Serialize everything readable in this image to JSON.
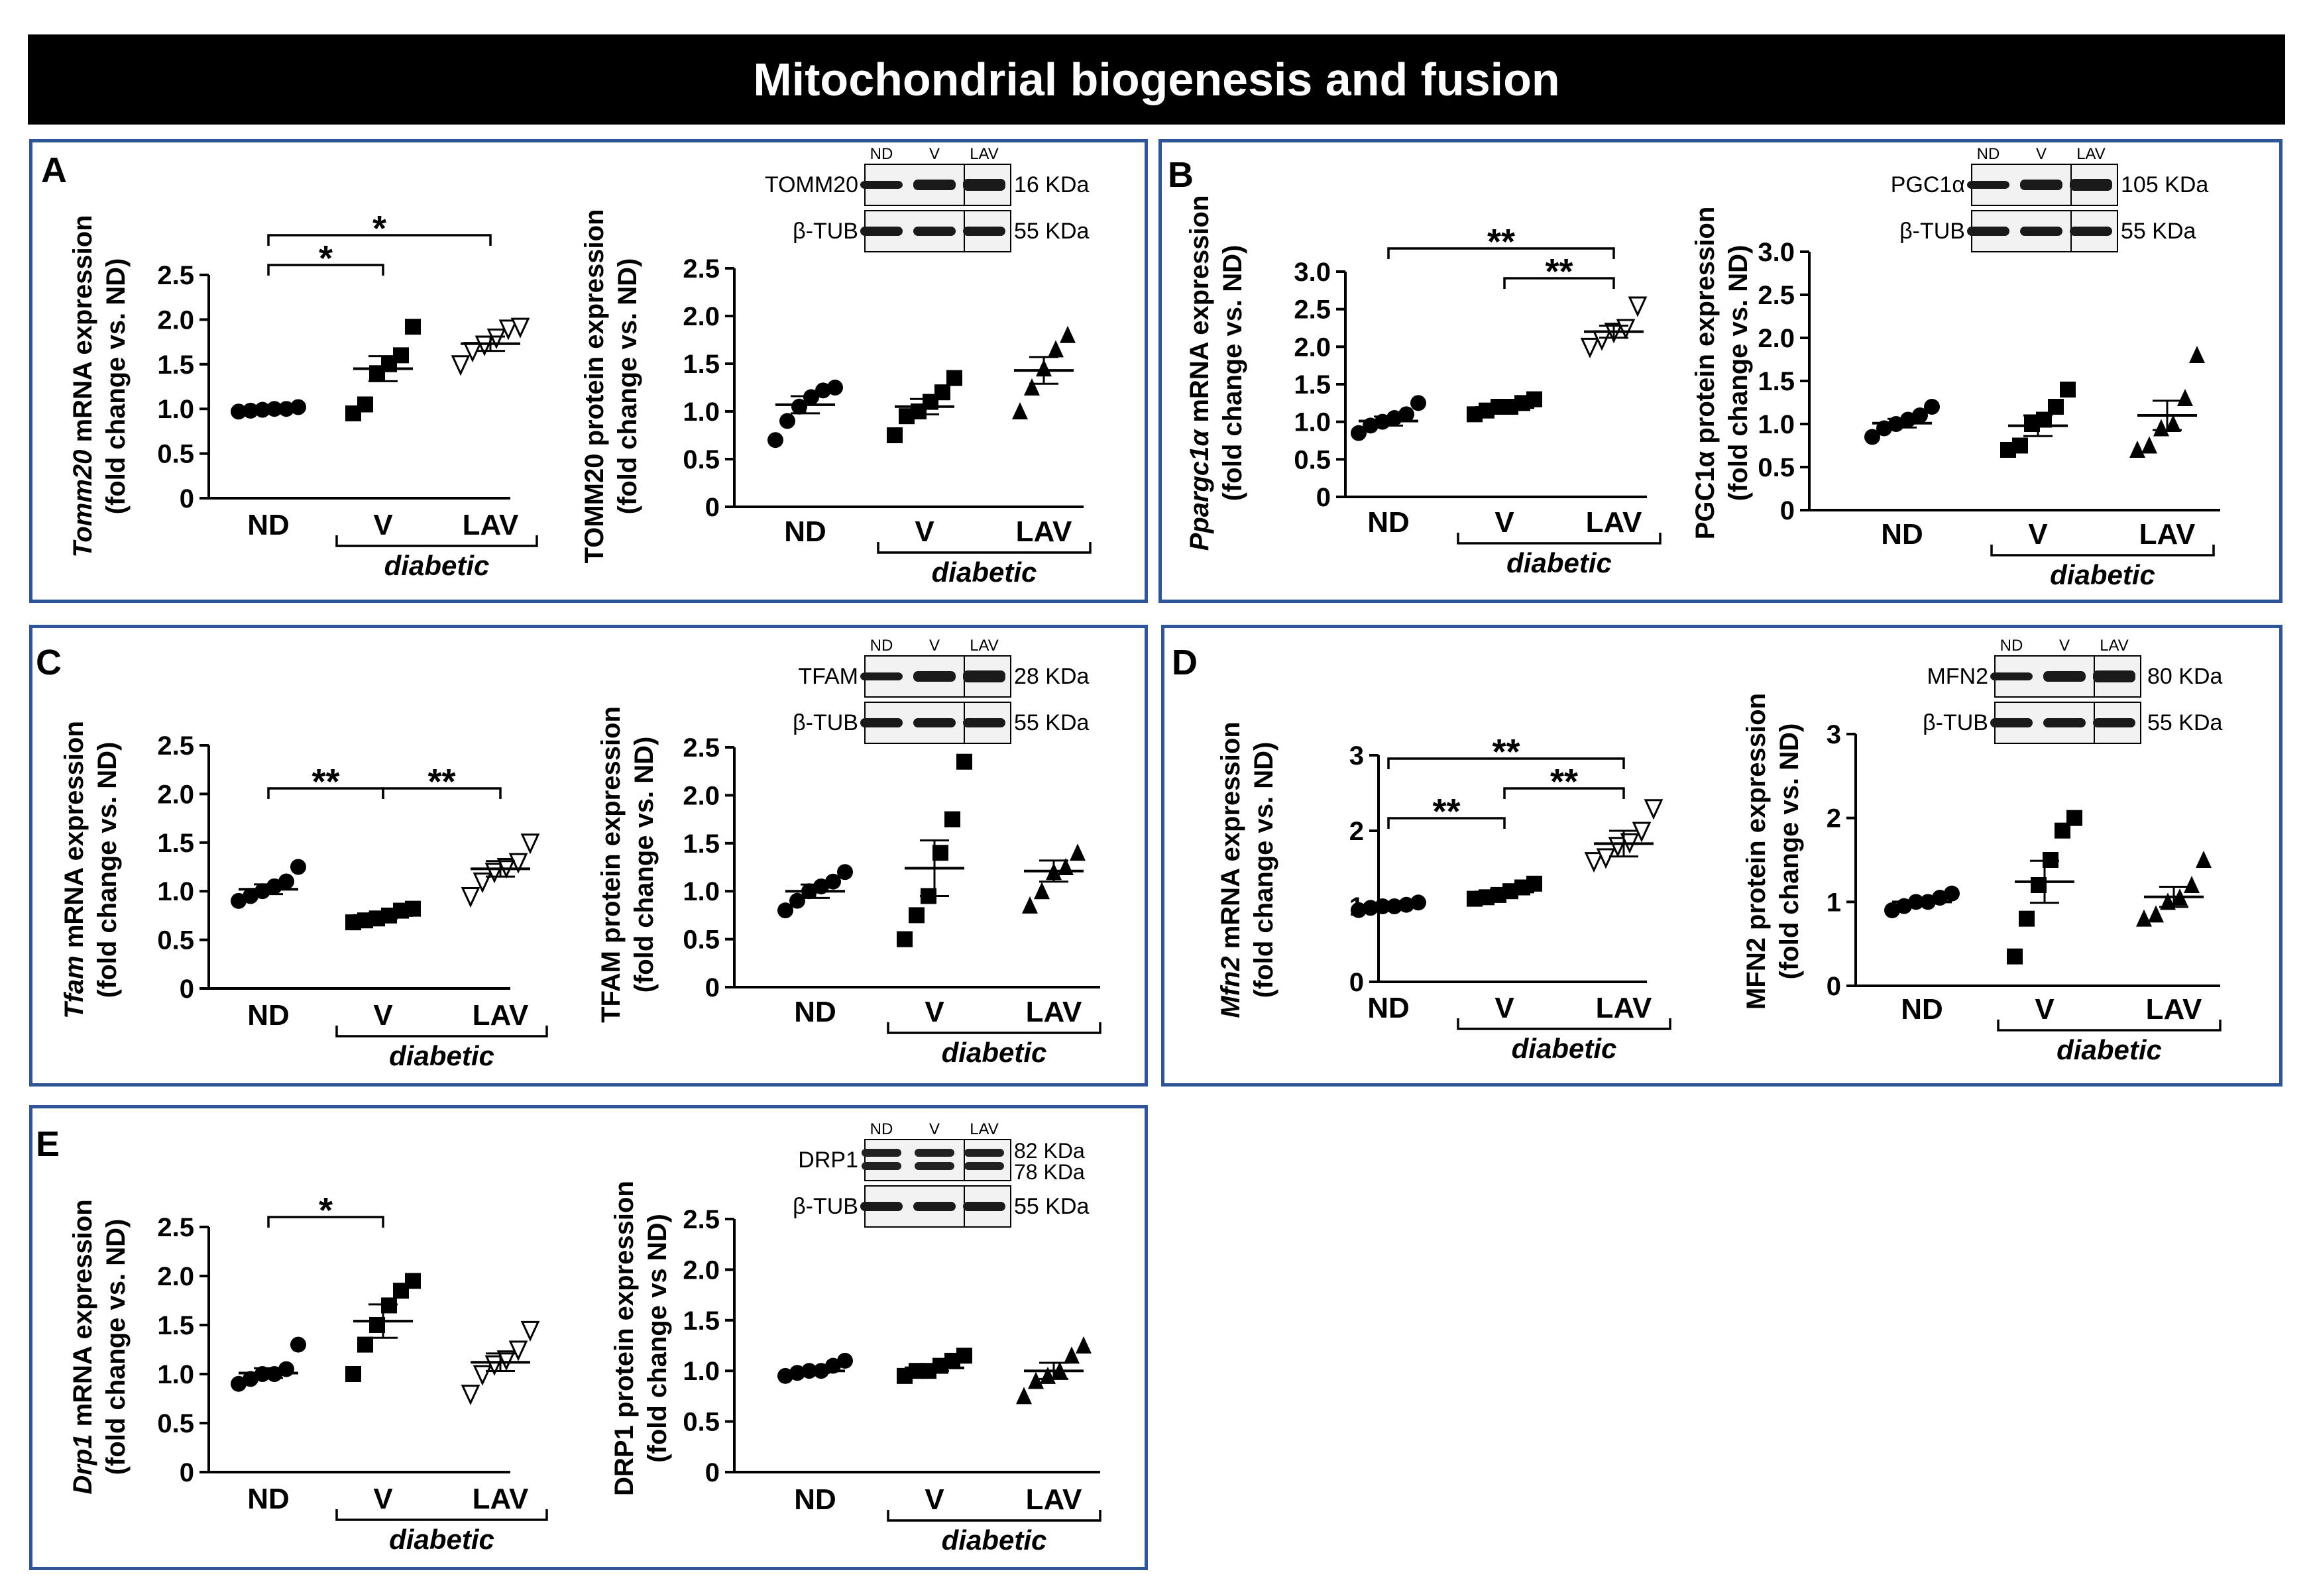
{
  "title": "Mitochondrial biogenesis and fusion",
  "colors": {
    "banner": "#000000",
    "panel_border": "#2e5597",
    "ink": "#000000"
  },
  "group_label": "diabetic",
  "chart_data": [
    {
      "id": "A-mrna",
      "panel": "A",
      "type": "scatter",
      "ylabel_italic": "Tomm20",
      "ylabel_rest": " mRNA expression",
      "ylabel_line2": "(fold change vs. ND)",
      "categories": [
        "ND",
        "V",
        "LAV"
      ],
      "ylim": [
        0,
        2.5
      ],
      "yticks": [
        "0",
        "0.5",
        "1.0",
        "1.5",
        "2.0",
        "2.5"
      ],
      "markers": [
        "circle",
        "square",
        "triangle-down"
      ],
      "points": [
        [
          0.97,
          0.98,
          0.99,
          1.0,
          1.0,
          1.02
        ],
        [
          0.95,
          1.05,
          1.4,
          1.5,
          1.6,
          1.92
        ],
        [
          1.5,
          1.65,
          1.72,
          1.8,
          1.9,
          1.92
        ]
      ],
      "mean": [
        1.0,
        1.45,
        1.73
      ],
      "sem": [
        0.01,
        0.14,
        0.08
      ],
      "sig": [
        {
          "from": 0,
          "to": 1,
          "label": "*",
          "level": 0
        },
        {
          "from": 0,
          "to": 2,
          "label": "*",
          "level": 1
        }
      ]
    },
    {
      "id": "A-protein",
      "panel": "A",
      "type": "scatter",
      "ylabel_rest": "TOMM20 protein expression",
      "ylabel_line2": "(fold change vs. ND)",
      "categories": [
        "ND",
        "V",
        "LAV"
      ],
      "ylim": [
        0,
        2.5
      ],
      "yticks": [
        "0",
        "0.5",
        "1.0",
        "1.5",
        "2.0",
        "2.5"
      ],
      "markers": [
        "circle",
        "square",
        "triangle-up"
      ],
      "points": [
        [
          0.7,
          0.9,
          1.05,
          1.15,
          1.22,
          1.25
        ],
        [
          0.75,
          0.95,
          1.0,
          1.1,
          1.2,
          1.35
        ],
        [
          1.0,
          1.25,
          1.45,
          1.65,
          1.8
        ]
      ],
      "mean": [
        1.07,
        1.05,
        1.43
      ],
      "sem": [
        0.09,
        0.08,
        0.14
      ],
      "blot": {
        "lanes": [
          "ND",
          "V",
          "LAV"
        ],
        "rows": [
          {
            "label": "TOMM20",
            "size": "16 KDa"
          },
          {
            "label": "β-TUB",
            "size": "55 KDa"
          }
        ]
      }
    },
    {
      "id": "B-mrna",
      "panel": "B",
      "type": "scatter",
      "ylabel_italic": "Ppargc1α",
      "ylabel_rest": " mRNA expression",
      "ylabel_line2": "(fold change vs. ND)",
      "categories": [
        "ND",
        "V",
        "LAV"
      ],
      "ylim": [
        0,
        3.0
      ],
      "yticks": [
        "0",
        "0.5",
        "1.0",
        "1.5",
        "2.0",
        "2.5",
        "3.0"
      ],
      "markers": [
        "circle",
        "square",
        "triangle-down"
      ],
      "points": [
        [
          0.85,
          0.95,
          1.0,
          1.05,
          1.1,
          1.25
        ],
        [
          1.1,
          1.15,
          1.2,
          1.2,
          1.25,
          1.3
        ],
        [
          2.0,
          2.1,
          2.2,
          2.25,
          2.55
        ]
      ],
      "mean": [
        1.01,
        1.19,
        2.2
      ],
      "sem": [
        0.06,
        0.03,
        0.08
      ],
      "sig": [
        {
          "from": 1,
          "to": 2,
          "label": "**",
          "level": 0
        },
        {
          "from": 0,
          "to": 2,
          "label": "**",
          "level": 1
        }
      ]
    },
    {
      "id": "B-protein",
      "panel": "B",
      "type": "scatter",
      "ylabel_rest": "PGC1α protein expression",
      "ylabel_line2": "(fold change vs. ND)",
      "categories": [
        "ND",
        "V",
        "LAV"
      ],
      "ylim": [
        0,
        3.0
      ],
      "yticks": [
        "0",
        "0.5",
        "1.0",
        "1.5",
        "2.0",
        "2.5",
        "3.0"
      ],
      "markers": [
        "circle",
        "square",
        "triangle-up"
      ],
      "points": [
        [
          0.85,
          0.95,
          1.0,
          1.05,
          1.1,
          1.2
        ],
        [
          0.7,
          0.75,
          1.0,
          1.05,
          1.2,
          1.4
        ],
        [
          0.7,
          0.75,
          0.95,
          1.0,
          1.3,
          1.8
        ]
      ],
      "mean": [
        1.01,
        0.98,
        1.1
      ],
      "sem": [
        0.05,
        0.12,
        0.17
      ],
      "blot": {
        "lanes": [
          "ND",
          "V",
          "LAV"
        ],
        "rows": [
          {
            "label": "PGC1α",
            "size": "105 KDa"
          },
          {
            "label": "β-TUB",
            "size": "55 KDa"
          }
        ]
      }
    },
    {
      "id": "C-mrna",
      "panel": "C",
      "type": "scatter",
      "ylabel_italic": "Tfam",
      "ylabel_rest": " mRNA expression",
      "ylabel_line2": "(fold change vs. ND)",
      "categories": [
        "ND",
        "V",
        "LAV"
      ],
      "ylim": [
        0,
        2.5
      ],
      "yticks": [
        "0",
        "0.5",
        "1.0",
        "1.5",
        "2.0",
        "2.5"
      ],
      "markers": [
        "circle",
        "square",
        "triangle-down"
      ],
      "points": [
        [
          0.9,
          0.95,
          1.0,
          1.05,
          1.1,
          1.25
        ],
        [
          0.68,
          0.7,
          0.72,
          0.75,
          0.8,
          0.82
        ],
        [
          0.95,
          1.1,
          1.2,
          1.25,
          1.3,
          1.5
        ]
      ],
      "mean": [
        1.02,
        0.75,
        1.23
      ],
      "sem": [
        0.05,
        0.03,
        0.08
      ],
      "sig": [
        {
          "from": 0,
          "to": 1,
          "label": "**",
          "level": 0
        },
        {
          "from": 1,
          "to": 2,
          "label": "**",
          "level": 0
        }
      ]
    },
    {
      "id": "C-protein",
      "panel": "C",
      "type": "scatter",
      "ylabel_rest": "TFAM protein expression",
      "ylabel_line2": "(fold change vs. ND)",
      "categories": [
        "ND",
        "V",
        "LAV"
      ],
      "ylim": [
        0,
        2.5
      ],
      "yticks": [
        "0",
        "0.5",
        "1.0",
        "1.5",
        "2.0",
        "2.5"
      ],
      "markers": [
        "circle",
        "square",
        "triangle-up"
      ],
      "points": [
        [
          0.8,
          0.9,
          1.0,
          1.05,
          1.1,
          1.2
        ],
        [
          0.5,
          0.75,
          0.95,
          1.4,
          1.75,
          2.35
        ],
        [
          0.85,
          1.0,
          1.2,
          1.25,
          1.4
        ]
      ],
      "mean": [
        1.0,
        1.24,
        1.21
      ],
      "sem": [
        0.07,
        0.29,
        0.11
      ],
      "blot": {
        "lanes": [
          "ND",
          "V",
          "LAV"
        ],
        "rows": [
          {
            "label": "TFAM",
            "size": "28 KDa"
          },
          {
            "label": "β-TUB",
            "size": "55 KDa"
          }
        ]
      }
    },
    {
      "id": "D-mrna",
      "panel": "D",
      "type": "scatter",
      "ylabel_italic": "Mfn2",
      "ylabel_rest": " mRNA expression",
      "ylabel_line2": "(fold change vs. ND)",
      "categories": [
        "ND",
        "V",
        "LAV"
      ],
      "ylim": [
        0,
        3
      ],
      "yticks": [
        "0",
        "1",
        "2",
        "3"
      ],
      "markers": [
        "circle",
        "square",
        "triangle-down"
      ],
      "points": [
        [
          0.95,
          0.98,
          1.0,
          1.0,
          1.02,
          1.05
        ],
        [
          1.1,
          1.12,
          1.15,
          1.2,
          1.25,
          1.3
        ],
        [
          1.6,
          1.65,
          1.8,
          1.85,
          2.0,
          2.3
        ]
      ],
      "mean": [
        1.0,
        1.19,
        1.83
      ],
      "sem": [
        0.01,
        0.03,
        0.17
      ],
      "sig": [
        {
          "from": 0,
          "to": 1,
          "label": "**",
          "level": 0
        },
        {
          "from": 1,
          "to": 2,
          "label": "**",
          "level": 1
        },
        {
          "from": 0,
          "to": 2,
          "label": "**",
          "level": 2
        }
      ]
    },
    {
      "id": "D-protein",
      "panel": "D",
      "type": "scatter",
      "ylabel_rest": "MFN2 protein expression",
      "ylabel_line2": "(fold change vs. ND)",
      "categories": [
        "ND",
        "V",
        "LAV"
      ],
      "ylim": [
        0,
        3
      ],
      "yticks": [
        "0",
        "1",
        "2",
        "3"
      ],
      "markers": [
        "circle",
        "square",
        "triangle-up"
      ],
      "points": [
        [
          0.9,
          0.95,
          1.0,
          1.0,
          1.05,
          1.1
        ],
        [
          0.35,
          0.8,
          1.2,
          1.5,
          1.85,
          2.0
        ],
        [
          0.8,
          0.85,
          1.0,
          1.05,
          1.2,
          1.5
        ]
      ],
      "mean": [
        1.0,
        1.24,
        1.06
      ],
      "sem": [
        0.02,
        0.25,
        0.12
      ],
      "blot": {
        "lanes": [
          "ND",
          "V",
          "LAV"
        ],
        "rows": [
          {
            "label": "MFN2",
            "size": "80 KDa"
          },
          {
            "label": "β-TUB",
            "size": "55 KDa"
          }
        ]
      }
    },
    {
      "id": "E-mrna",
      "panel": "E",
      "type": "scatter",
      "ylabel_italic": "Drp1",
      "ylabel_rest": " mRNA expression",
      "ylabel_line2": "(fold change vs. ND)",
      "categories": [
        "ND",
        "V",
        "LAV"
      ],
      "ylim": [
        0,
        2.5
      ],
      "yticks": [
        "0",
        "0.5",
        "1.0",
        "1.5",
        "2.0",
        "2.5"
      ],
      "markers": [
        "circle",
        "square",
        "triangle-down"
      ],
      "points": [
        [
          0.9,
          0.95,
          1.0,
          1.0,
          1.05,
          1.3
        ],
        [
          1.0,
          1.3,
          1.5,
          1.7,
          1.85,
          1.95
        ],
        [
          0.8,
          1.0,
          1.1,
          1.15,
          1.25,
          1.45
        ]
      ],
      "mean": [
        1.01,
        1.54,
        1.12
      ],
      "sem": [
        0.05,
        0.17,
        0.09
      ],
      "sig": [
        {
          "from": 0,
          "to": 1,
          "label": "*",
          "level": 0
        }
      ]
    },
    {
      "id": "E-protein",
      "panel": "E",
      "type": "scatter",
      "ylabel_rest": "DRP1 protein expression",
      "ylabel_line2": "(fold change vs ND)",
      "categories": [
        "ND",
        "V",
        "LAV"
      ],
      "ylim": [
        0,
        2.5
      ],
      "yticks": [
        "0",
        "0.5",
        "1.0",
        "1.5",
        "2.0",
        "2.5"
      ],
      "markers": [
        "circle",
        "square",
        "triangle-up"
      ],
      "points": [
        [
          0.95,
          0.98,
          1.0,
          1.0,
          1.05,
          1.1
        ],
        [
          0.95,
          1.0,
          1.0,
          1.05,
          1.1,
          1.15
        ],
        [
          0.75,
          0.9,
          0.95,
          1.0,
          1.15,
          1.25
        ]
      ],
      "mean": [
        1.0,
        1.03,
        1.0
      ],
      "sem": [
        0.02,
        0.03,
        0.08
      ],
      "blot": {
        "lanes": [
          "ND",
          "V",
          "LAV"
        ],
        "rows": [
          {
            "label": "DRP1",
            "size": "82 KDa",
            "size2": "78 KDa",
            "double": true
          },
          {
            "label": "β-TUB",
            "size": "55 KDa"
          }
        ]
      }
    }
  ]
}
